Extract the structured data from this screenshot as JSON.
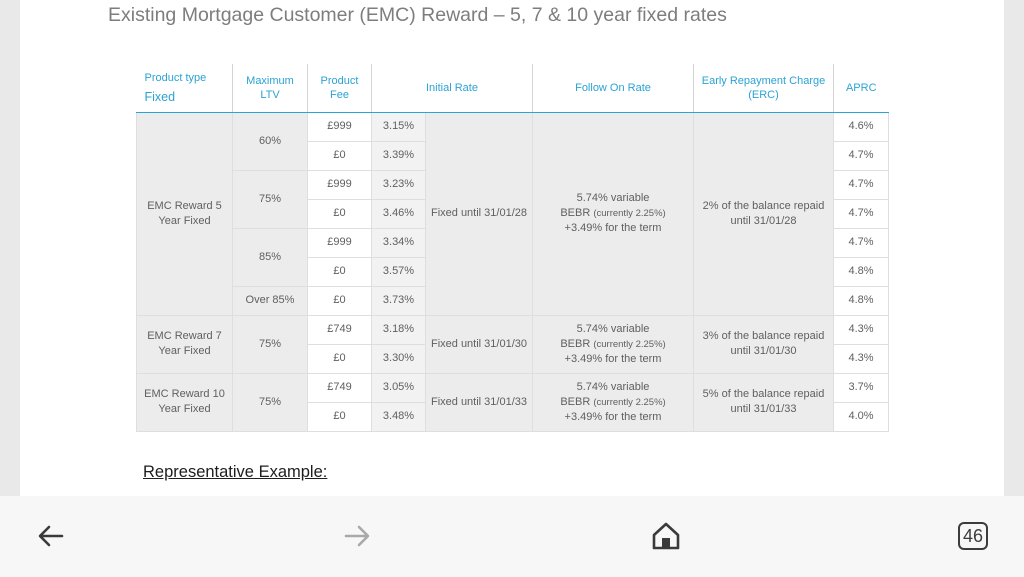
{
  "document": {
    "title": "Existing Mortgage Customer (EMC) Reward – 5, 7 & 10 year fixed rates",
    "representative_example": "Representative Example:"
  },
  "table": {
    "headers": {
      "product_type": "Product type",
      "product_type_sub": "Fixed",
      "max_ltv": "Maximum LTV",
      "product_fee": "Product Fee",
      "initial_rate": "Initial Rate",
      "follow_on_rate": "Follow On Rate",
      "erc": "Early Repayment Charge (ERC)",
      "aprc": "APRC"
    },
    "groups": [
      {
        "product": "EMC Reward 5 Year Fixed",
        "initial": "Fixed until 31/01/28",
        "follow_on_main": "5.74% variable",
        "follow_on_bebr": "BEBR",
        "follow_on_note": "(currently 2.25%)",
        "follow_on_term": "+3.49% for the term",
        "erc": "2% of the balance repaid until 31/01/28",
        "ltvs": [
          {
            "ltv": "60%",
            "rows": [
              {
                "fee": "£999",
                "rate": "3.15%",
                "aprc": "4.6%"
              },
              {
                "fee": "£0",
                "rate": "3.39%",
                "aprc": "4.7%"
              }
            ]
          },
          {
            "ltv": "75%",
            "rows": [
              {
                "fee": "£999",
                "rate": "3.23%",
                "aprc": "4.7%"
              },
              {
                "fee": "£0",
                "rate": "3.46%",
                "aprc": "4.7%"
              }
            ]
          },
          {
            "ltv": "85%",
            "rows": [
              {
                "fee": "£999",
                "rate": "3.34%",
                "aprc": "4.7%"
              },
              {
                "fee": "£0",
                "rate": "3.57%",
                "aprc": "4.8%"
              }
            ]
          },
          {
            "ltv": "Over 85%",
            "rows": [
              {
                "fee": "£0",
                "rate": "3.73%",
                "aprc": "4.8%"
              }
            ]
          }
        ]
      },
      {
        "product": "EMC Reward 7 Year Fixed",
        "initial": "Fixed until 31/01/30",
        "follow_on_main": "5.74% variable",
        "follow_on_bebr": "BEBR",
        "follow_on_note": "(currently 2.25%)",
        "follow_on_term": "+3.49% for the term",
        "erc": "3% of the balance repaid until 31/01/30",
        "ltvs": [
          {
            "ltv": "75%",
            "rows": [
              {
                "fee": "£749",
                "rate": "3.18%",
                "aprc": "4.3%"
              },
              {
                "fee": "£0",
                "rate": "3.30%",
                "aprc": "4.3%"
              }
            ]
          }
        ]
      },
      {
        "product": "EMC Reward 10 Year Fixed",
        "initial": "Fixed until 31/01/33",
        "follow_on_main": "5.74% variable",
        "follow_on_bebr": "BEBR",
        "follow_on_note": "(currently 2.25%)",
        "follow_on_term": "+3.49% for the term",
        "erc": "5% of the balance repaid until 31/01/33",
        "ltvs": [
          {
            "ltv": "75%",
            "rows": [
              {
                "fee": "£749",
                "rate": "3.05%",
                "aprc": "3.7%"
              },
              {
                "fee": "£0",
                "rate": "3.48%",
                "aprc": "4.0%"
              }
            ]
          }
        ]
      }
    ]
  },
  "nav": {
    "back_icon": "arrow-left-icon",
    "forward_icon": "arrow-right-icon",
    "home_icon": "home-icon",
    "tabs_count": "46"
  },
  "colors": {
    "header_text": "#2aa3d4",
    "divider": "#6fc4e4",
    "title_text": "#7d7d7d"
  }
}
